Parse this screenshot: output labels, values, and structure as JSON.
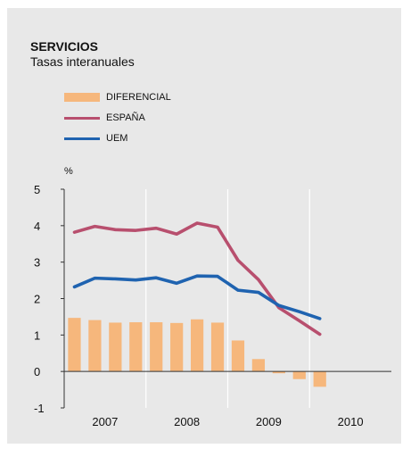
{
  "header": {
    "title": "SERVICIOS",
    "subtitle": "Tasas interanuales"
  },
  "unit_label": "%",
  "colors": {
    "background": "#e8e8e8",
    "diferencial": "#f6b77c",
    "espana": "#b84f6e",
    "uem": "#1f63b0",
    "axis": "#333333",
    "grid": "#ffffff"
  },
  "legend": [
    {
      "label": "DIFERENCIAL",
      "color": "#f6b77c",
      "kind": "bar"
    },
    {
      "label": "ESPAÑA",
      "color": "#b84f6e",
      "kind": "line"
    },
    {
      "label": "UEM",
      "color": "#1f63b0",
      "kind": "line"
    }
  ],
  "chart_data": {
    "type": "bar+line",
    "title": "SERVICIOS",
    "subtitle": "Tasas interanuales",
    "ylabel": "%",
    "ylim": [
      -1,
      5
    ],
    "yticks": [
      5,
      4,
      3,
      2,
      1,
      0,
      -1
    ],
    "xlim": [
      0,
      16
    ],
    "year_labels": [
      "2007",
      "2008",
      "2009",
      "2010"
    ],
    "grid": "vertical lines between years",
    "legend_position": "top-left",
    "x": [
      0.5,
      1.5,
      2.5,
      3.5,
      4.5,
      5.5,
      6.5,
      7.5,
      8.5,
      9.5,
      10.5,
      11.5,
      12.5
    ],
    "series": [
      {
        "name": "DIFERENCIAL",
        "kind": "bar",
        "values": [
          1.47,
          1.41,
          1.34,
          1.35,
          1.35,
          1.33,
          1.43,
          1.34,
          0.85,
          0.34,
          -0.05,
          -0.21,
          -0.42
        ]
      },
      {
        "name": "ESPAÑA",
        "kind": "line",
        "values": [
          3.82,
          3.98,
          3.89,
          3.87,
          3.93,
          3.77,
          4.07,
          3.96,
          3.05,
          2.52,
          1.75,
          1.39,
          1.02
        ]
      },
      {
        "name": "UEM",
        "kind": "line",
        "values": [
          2.32,
          2.56,
          2.54,
          2.51,
          2.57,
          2.42,
          2.62,
          2.61,
          2.23,
          2.17,
          1.81,
          1.64,
          1.45
        ]
      }
    ]
  }
}
